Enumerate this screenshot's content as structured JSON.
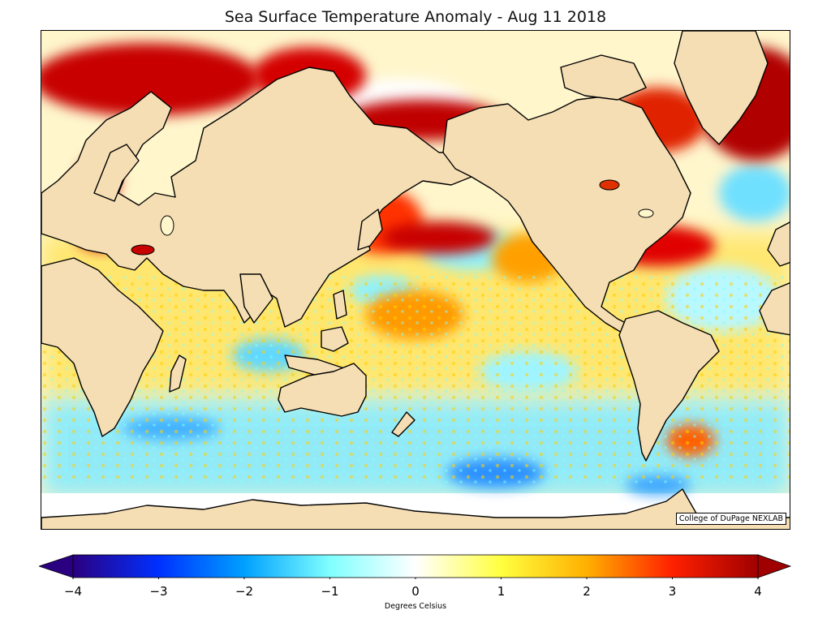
{
  "title": "Sea Surface Temperature Anomaly - Aug 11 2018",
  "credit": "College of DuPage NEXLAB",
  "colorbar": {
    "label": "Degrees Celsius",
    "min": -4,
    "max": 4,
    "ticks": [
      "−4",
      "−3",
      "−2",
      "−1",
      "0",
      "1",
      "2",
      "3",
      "4"
    ],
    "extend": "both",
    "stops": [
      "#2a0080",
      "#0030ff",
      "#00a0ff",
      "#80ffff",
      "#ffffff",
      "#ffff40",
      "#ffb000",
      "#ff2000",
      "#a00000"
    ]
  },
  "colors": {
    "land": "#f5deb3",
    "coast": "#000000",
    "ocean_neutral": "#fffbe6",
    "warm_anomaly": "#c00000",
    "cool_anomaly": "#40d0ff"
  },
  "map_projection": "equirectangular, Pacific-centered",
  "map_extent": {
    "lon": [
      20,
      380
    ],
    "lat": [
      -80,
      80
    ]
  }
}
